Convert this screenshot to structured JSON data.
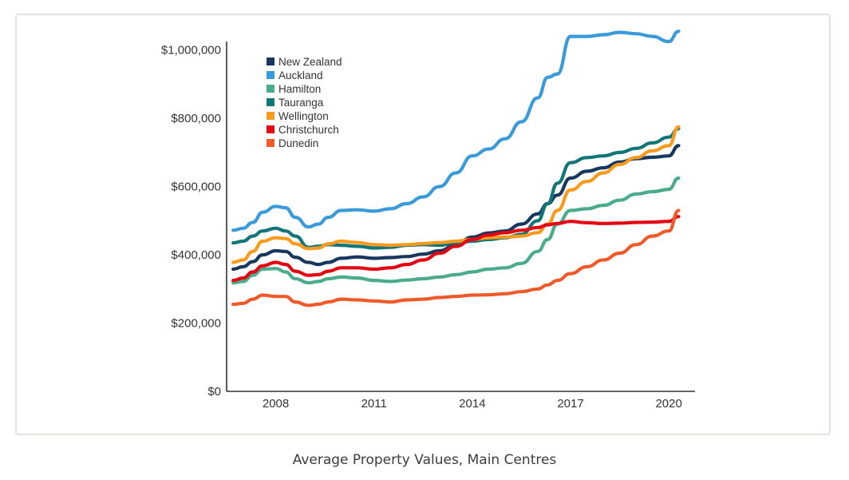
{
  "caption": "Average Property Values, Main Centres",
  "chart_data": {
    "type": "line",
    "title": "",
    "xlabel": "",
    "ylabel": "",
    "xlim": [
      2006.5,
      2020.8
    ],
    "ylim": [
      0,
      1100000
    ],
    "grid": false,
    "legend_position": "top-left",
    "x_ticks": [
      {
        "value": 2008,
        "label": "2008"
      },
      {
        "value": 2011,
        "label": "2011"
      },
      {
        "value": 2014,
        "label": "2014"
      },
      {
        "value": 2017,
        "label": "2017"
      },
      {
        "value": 2020,
        "label": "2020"
      }
    ],
    "y_ticks": [
      {
        "value": 0,
        "label": "$0"
      },
      {
        "value": 200000,
        "label": "$200,000"
      },
      {
        "value": 400000,
        "label": "$400,000"
      },
      {
        "value": 600000,
        "label": "$600,000"
      },
      {
        "value": 800000,
        "label": "$800,000"
      },
      {
        "value": 1000000,
        "label": "$1,000,000"
      }
    ],
    "series": [
      {
        "name": "New Zealand",
        "color": "#17375e",
        "x": [
          2006.7,
          2007.0,
          2007.3,
          2007.6,
          2008.0,
          2008.3,
          2008.6,
          2009.0,
          2009.3,
          2009.6,
          2010.0,
          2010.5,
          2011.0,
          2011.5,
          2012.0,
          2012.5,
          2013.0,
          2013.5,
          2014.0,
          2014.5,
          2015.0,
          2015.5,
          2016.0,
          2016.3,
          2016.6,
          2017.0,
          2017.5,
          2018.0,
          2018.5,
          2019.0,
          2019.5,
          2020.0,
          2020.3
        ],
        "values": [
          358000,
          365000,
          380000,
          400000,
          412000,
          410000,
          393000,
          378000,
          372000,
          378000,
          390000,
          394000,
          390000,
          392000,
          395000,
          402000,
          412000,
          430000,
          452000,
          464000,
          470000,
          490000,
          520000,
          550000,
          575000,
          625000,
          645000,
          655000,
          672000,
          682000,
          686000,
          690000,
          720000
        ]
      },
      {
        "name": "Auckland",
        "color": "#3b9ad9",
        "x": [
          2006.7,
          2007.0,
          2007.3,
          2007.6,
          2008.0,
          2008.3,
          2008.6,
          2009.0,
          2009.3,
          2009.6,
          2010.0,
          2010.5,
          2011.0,
          2011.5,
          2012.0,
          2012.5,
          2013.0,
          2013.5,
          2014.0,
          2014.5,
          2015.0,
          2015.5,
          2016.0,
          2016.3,
          2016.6,
          2017.0,
          2017.5,
          2018.0,
          2018.5,
          2019.0,
          2019.5,
          2020.0,
          2020.3
        ],
        "values": [
          472000,
          478000,
          495000,
          525000,
          542000,
          538000,
          510000,
          482000,
          490000,
          510000,
          530000,
          532000,
          528000,
          535000,
          550000,
          570000,
          600000,
          640000,
          690000,
          710000,
          740000,
          790000,
          860000,
          920000,
          930000,
          1040000,
          1040000,
          1045000,
          1052000,
          1048000,
          1040000,
          1025000,
          1055000
        ]
      },
      {
        "name": "Hamilton",
        "color": "#4aab8d",
        "x": [
          2006.7,
          2007.0,
          2007.3,
          2007.6,
          2008.0,
          2008.3,
          2008.6,
          2009.0,
          2009.3,
          2009.6,
          2010.0,
          2010.5,
          2011.0,
          2011.5,
          2012.0,
          2012.5,
          2013.0,
          2013.5,
          2014.0,
          2014.5,
          2015.0,
          2015.5,
          2016.0,
          2016.3,
          2016.6,
          2017.0,
          2017.5,
          2018.0,
          2018.5,
          2019.0,
          2019.5,
          2020.0,
          2020.3
        ],
        "values": [
          318000,
          322000,
          340000,
          358000,
          360000,
          350000,
          330000,
          318000,
          322000,
          330000,
          335000,
          332000,
          325000,
          322000,
          326000,
          330000,
          335000,
          342000,
          350000,
          358000,
          362000,
          375000,
          410000,
          445000,
          490000,
          530000,
          535000,
          545000,
          560000,
          578000,
          585000,
          592000,
          625000
        ]
      },
      {
        "name": "Tauranga",
        "color": "#127577",
        "x": [
          2006.7,
          2007.0,
          2007.3,
          2007.6,
          2008.0,
          2008.3,
          2008.6,
          2009.0,
          2009.3,
          2009.6,
          2010.0,
          2010.5,
          2011.0,
          2011.5,
          2012.0,
          2012.5,
          2013.0,
          2013.5,
          2014.0,
          2014.5,
          2015.0,
          2015.5,
          2016.0,
          2016.3,
          2016.6,
          2017.0,
          2017.5,
          2018.0,
          2018.5,
          2019.0,
          2019.5,
          2020.0,
          2020.3
        ],
        "values": [
          435000,
          440000,
          455000,
          470000,
          478000,
          470000,
          455000,
          422000,
          425000,
          430000,
          428000,
          425000,
          420000,
          422000,
          428000,
          430000,
          428000,
          435000,
          440000,
          445000,
          450000,
          460000,
          500000,
          550000,
          610000,
          670000,
          685000,
          690000,
          700000,
          712000,
          728000,
          745000,
          770000
        ]
      },
      {
        "name": "Wellington",
        "color": "#f79a1e",
        "x": [
          2006.7,
          2007.0,
          2007.3,
          2007.6,
          2008.0,
          2008.3,
          2008.6,
          2009.0,
          2009.3,
          2009.6,
          2010.0,
          2010.5,
          2011.0,
          2011.5,
          2012.0,
          2012.5,
          2013.0,
          2013.5,
          2014.0,
          2014.5,
          2015.0,
          2015.5,
          2016.0,
          2016.3,
          2016.6,
          2017.0,
          2017.5,
          2018.0,
          2018.5,
          2019.0,
          2019.5,
          2020.0,
          2020.3
        ],
        "values": [
          378000,
          385000,
          410000,
          440000,
          450000,
          448000,
          432000,
          418000,
          420000,
          432000,
          440000,
          436000,
          430000,
          428000,
          430000,
          433000,
          436000,
          440000,
          445000,
          450000,
          452000,
          455000,
          465000,
          490000,
          530000,
          590000,
          615000,
          640000,
          665000,
          685000,
          705000,
          720000,
          775000
        ]
      },
      {
        "name": "Christchurch",
        "color": "#e30613",
        "x": [
          2006.7,
          2007.0,
          2007.3,
          2007.6,
          2008.0,
          2008.3,
          2008.6,
          2009.0,
          2009.3,
          2009.6,
          2010.0,
          2010.5,
          2011.0,
          2011.5,
          2012.0,
          2012.5,
          2013.0,
          2013.5,
          2014.0,
          2014.5,
          2015.0,
          2015.5,
          2016.0,
          2016.3,
          2016.6,
          2017.0,
          2017.5,
          2018.0,
          2018.5,
          2019.0,
          2019.5,
          2020.0,
          2020.3
        ],
        "values": [
          325000,
          332000,
          350000,
          368000,
          378000,
          372000,
          352000,
          340000,
          342000,
          352000,
          362000,
          362000,
          358000,
          362000,
          372000,
          385000,
          405000,
          425000,
          445000,
          458000,
          465000,
          472000,
          480000,
          488000,
          492000,
          498000,
          494000,
          492000,
          493000,
          495000,
          496000,
          498000,
          512000
        ]
      },
      {
        "name": "Dunedin",
        "color": "#ef5a2a",
        "x": [
          2006.7,
          2007.0,
          2007.3,
          2007.6,
          2008.0,
          2008.3,
          2008.6,
          2009.0,
          2009.3,
          2009.6,
          2010.0,
          2010.5,
          2011.0,
          2011.5,
          2012.0,
          2012.5,
          2013.0,
          2013.5,
          2014.0,
          2014.5,
          2015.0,
          2015.5,
          2016.0,
          2016.3,
          2016.6,
          2017.0,
          2017.5,
          2018.0,
          2018.5,
          2019.0,
          2019.5,
          2020.0,
          2020.3
        ],
        "values": [
          255000,
          258000,
          270000,
          282000,
          278000,
          278000,
          262000,
          252000,
          255000,
          262000,
          270000,
          268000,
          265000,
          262000,
          268000,
          270000,
          275000,
          278000,
          282000,
          283000,
          286000,
          292000,
          300000,
          312000,
          325000,
          345000,
          365000,
          385000,
          405000,
          430000,
          455000,
          470000,
          530000
        ]
      }
    ]
  }
}
